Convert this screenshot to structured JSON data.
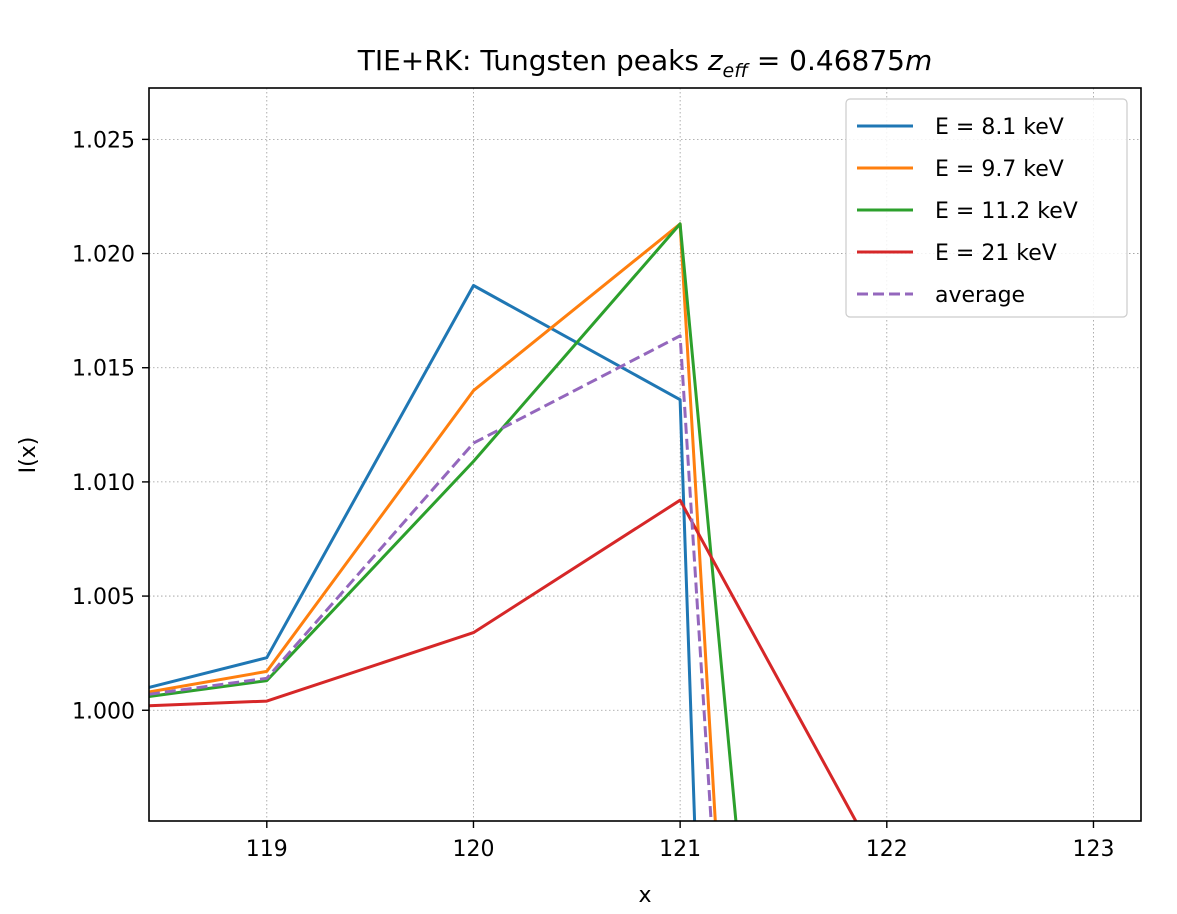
{
  "chart_data": {
    "type": "line",
    "title": "TIE+RK: Tungsten peaks z_eff = 0.46875m",
    "title_parts": {
      "prefix": "TIE+RK: Tungsten peaks ",
      "var": "z",
      "sub": "eff",
      "eq": " = 0.46875",
      "unit": "m"
    },
    "xlabel": "x",
    "ylabel": "I(x)",
    "xlim": [
      118.43,
      123.23
    ],
    "ylim": [
      0.99515,
      1.02725
    ],
    "xticks": [
      119,
      120,
      121,
      122,
      123
    ],
    "xtick_labels": [
      "119",
      "120",
      "121",
      "122",
      "123"
    ],
    "yticks": [
      1.0,
      1.005,
      1.01,
      1.015,
      1.02,
      1.025
    ],
    "ytick_labels": [
      "1.000",
      "1.005",
      "1.010",
      "1.015",
      "1.020",
      "1.025"
    ],
    "grid": true,
    "legend_position": "top-right",
    "series": [
      {
        "name": "E = 8.1 keV",
        "color": "#1f77b4",
        "dash": "solid",
        "x": [
          118.43,
          119,
          120,
          121,
          121.07
        ],
        "y": [
          1.001,
          1.0023,
          1.0186,
          1.0136,
          0.99515
        ]
      },
      {
        "name": "E = 9.7 keV",
        "color": "#ff7f0e",
        "dash": "solid",
        "x": [
          118.43,
          119,
          120,
          121,
          121.17
        ],
        "y": [
          1.0008,
          1.0017,
          1.014,
          1.0213,
          0.99515
        ]
      },
      {
        "name": "E = 11.2 keV",
        "color": "#2ca02c",
        "dash": "solid",
        "x": [
          118.43,
          119,
          120,
          121,
          121.27
        ],
        "y": [
          1.0006,
          1.0013,
          1.0109,
          1.0213,
          0.99515
        ]
      },
      {
        "name": "E = 21 keV",
        "color": "#d62728",
        "dash": "solid",
        "x": [
          118.43,
          119,
          120,
          121,
          121.85
        ],
        "y": [
          1.0002,
          1.0004,
          1.0034,
          1.0092,
          0.99515
        ]
      },
      {
        "name": "average",
        "color": "#9467bd",
        "dash": "dashed",
        "x": [
          118.43,
          119,
          120,
          121,
          121.15
        ],
        "y": [
          1.0007,
          1.0014,
          1.0117,
          1.0164,
          0.99515
        ]
      }
    ]
  }
}
